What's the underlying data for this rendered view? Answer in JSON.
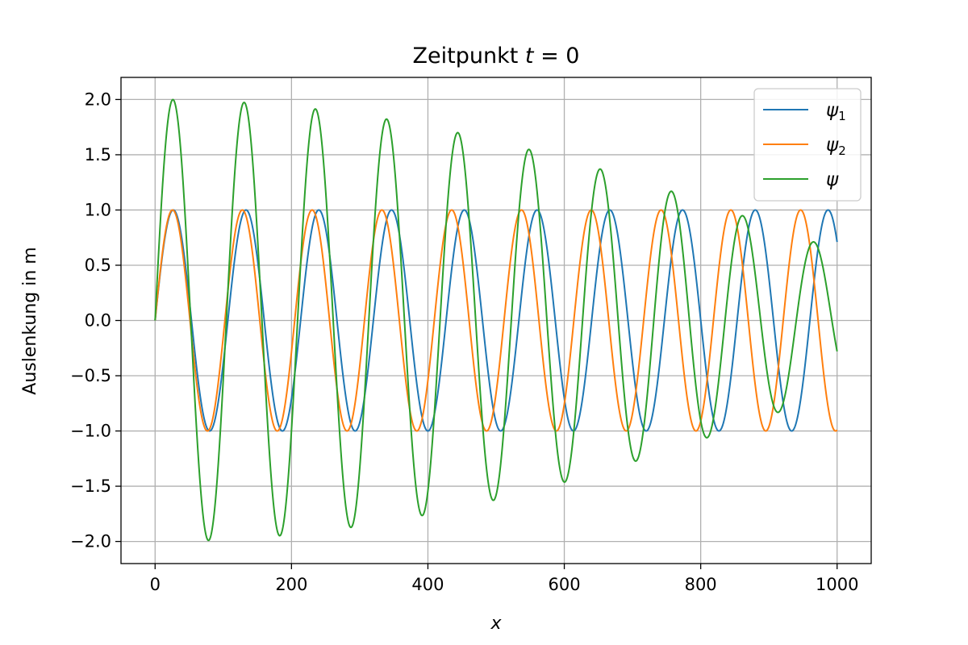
{
  "chart_data": {
    "type": "line",
    "title": "Zeitpunkt ",
    "title_var": "t",
    "title_rest": " = 0",
    "xlabel": "x",
    "ylabel": "Auslenkung in m",
    "xlim": [
      -50,
      1050
    ],
    "ylim": [
      -2.2,
      2.2
    ],
    "grid": true,
    "legend_position": "top-right",
    "x_ticks": [
      0,
      200,
      400,
      600,
      800,
      1000
    ],
    "x_tick_labels": [
      "0",
      "200",
      "400",
      "600",
      "800",
      "1000"
    ],
    "y_ticks": [
      -2.0,
      -1.5,
      -1.0,
      -0.5,
      0.0,
      0.5,
      1.0,
      1.5,
      2.0
    ],
    "y_tick_labels": [
      "−2.0",
      "−1.5",
      "−1.0",
      "−0.5",
      "0.0",
      "0.5",
      "1.0",
      "1.5",
      "2.0"
    ],
    "x_range": [
      0,
      1000
    ],
    "series": [
      {
        "name": "ψ1",
        "base": "ψ",
        "sub": "1",
        "color": "#1f77b4",
        "formula": "sin(k1*x)",
        "k": 0.0589,
        "period": 106.7
      },
      {
        "name": "ψ2",
        "base": "ψ",
        "sub": "2",
        "color": "#ff7f0e",
        "formula": "sin(k2*x)",
        "k": 0.0614,
        "period": 102.3
      },
      {
        "name": "ψ",
        "base": "ψ",
        "sub": "",
        "color": "#2ca02c",
        "formula": "sin(k1*x)+sin(k2*x)"
      }
    ]
  }
}
